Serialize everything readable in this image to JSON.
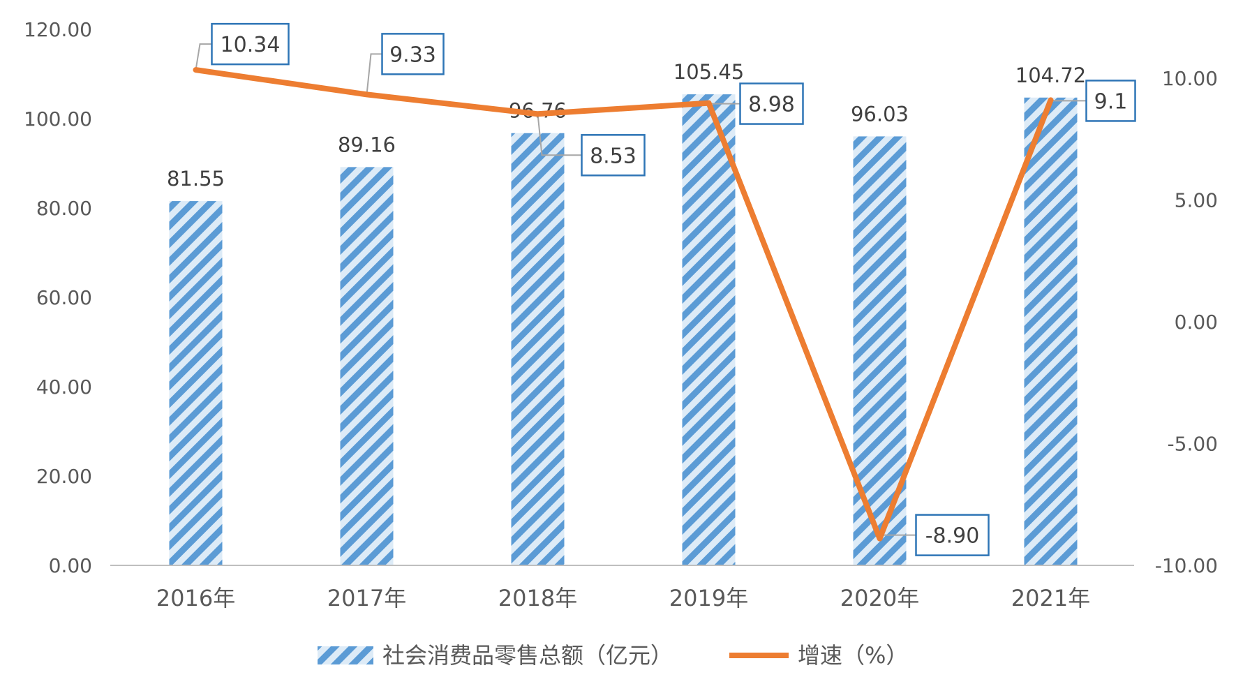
{
  "chart_data": {
    "type": "bar",
    "categories": [
      "2016年",
      "2017年",
      "2018年",
      "2019年",
      "2020年",
      "2021年"
    ],
    "series": [
      {
        "name": "社会消费品零售总额（亿元）",
        "type": "bar",
        "axis": "left",
        "values": [
          81.55,
          89.16,
          96.76,
          105.45,
          96.03,
          104.72
        ],
        "labels": [
          "81.55",
          "89.16",
          "96.76",
          "105.45",
          "96.03",
          "104.72"
        ],
        "color": "#5B9BD5"
      },
      {
        "name": "增速（%）",
        "type": "line",
        "axis": "right",
        "values": [
          10.34,
          9.33,
          8.53,
          8.98,
          -8.9,
          9.1
        ],
        "labels": [
          "10.34",
          "9.33",
          "8.53",
          "8.98",
          "-8.90",
          "9.1"
        ],
        "color": "#ED7D31"
      }
    ],
    "left_axis": {
      "ylim": [
        0,
        120
      ],
      "ticks": [
        "0.00",
        "20.00",
        "40.00",
        "60.00",
        "80.00",
        "100.00",
        "120.00"
      ]
    },
    "right_axis": {
      "ylim": [
        -10,
        12
      ],
      "ticks": [
        "-10.00",
        "-5.00",
        "0.00",
        "5.00",
        "10.00"
      ]
    },
    "legend": "bottom",
    "grid": false
  }
}
